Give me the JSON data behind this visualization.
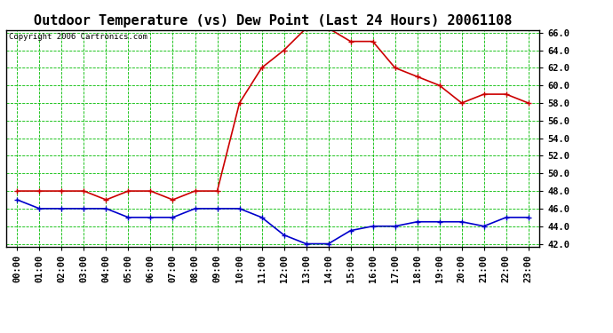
{
  "title": "Outdoor Temperature (vs) Dew Point (Last 24 Hours) 20061108",
  "copyright": "Copyright 2006 Cartronics.com",
  "hours": [
    "00:00",
    "01:00",
    "02:00",
    "03:00",
    "04:00",
    "05:00",
    "06:00",
    "07:00",
    "08:00",
    "09:00",
    "10:00",
    "11:00",
    "12:00",
    "13:00",
    "14:00",
    "15:00",
    "16:00",
    "17:00",
    "18:00",
    "19:00",
    "20:00",
    "21:00",
    "22:00",
    "23:00"
  ],
  "temp": [
    48.0,
    48.0,
    48.0,
    48.0,
    47.0,
    48.0,
    48.0,
    47.0,
    48.0,
    48.0,
    58.0,
    62.0,
    64.0,
    66.5,
    66.5,
    65.0,
    65.0,
    62.0,
    61.0,
    60.0,
    58.0,
    59.0,
    59.0,
    58.0
  ],
  "dewpoint": [
    47.0,
    46.0,
    46.0,
    46.0,
    46.0,
    45.0,
    45.0,
    45.0,
    46.0,
    46.0,
    46.0,
    45.0,
    43.0,
    42.0,
    42.0,
    43.5,
    44.0,
    44.0,
    44.5,
    44.5,
    44.5,
    44.0,
    45.0,
    45.0
  ],
  "temp_color": "#cc0000",
  "dewpoint_color": "#0000cc",
  "bg_color": "#ffffff",
  "plot_bg_color": "#ffffff",
  "grid_color": "#00bb00",
  "ylim_low": 42.0,
  "ylim_high": 66.0,
  "yticks": [
    42.0,
    44.0,
    46.0,
    48.0,
    50.0,
    52.0,
    54.0,
    56.0,
    58.0,
    60.0,
    62.0,
    64.0,
    66.0
  ],
  "title_fontsize": 11,
  "copyright_fontsize": 6.5,
  "tick_fontsize": 7.5,
  "marker": "+",
  "marker_size": 5,
  "linewidth": 1.2
}
